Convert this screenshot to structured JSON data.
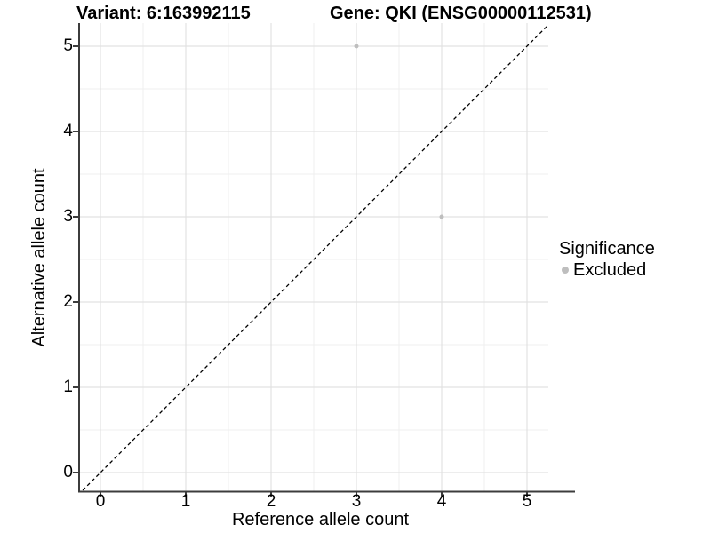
{
  "figure": {
    "title_left": "Variant: 6:163992115",
    "title_right": "Gene: QKI (ENSG00000112531)"
  },
  "chart_data": {
    "type": "scatter",
    "title_left": "Variant: 6:163992115",
    "title_right": "Gene: QKI (ENSG00000112531)",
    "xlabel": "Reference allele count",
    "ylabel": "Alternative allele count",
    "x_ticks": [
      0,
      1,
      2,
      3,
      4,
      5
    ],
    "y_ticks": [
      0,
      1,
      2,
      3,
      4,
      5
    ],
    "xlim": [
      -0.25,
      5.25
    ],
    "ylim": [
      -0.25,
      5.25
    ],
    "grid": "major-and-minor",
    "minor_grid_step": 0.5,
    "identity_line": {
      "description": "y = x reference line",
      "style": "dashed",
      "color": "#000000",
      "from": [
        -0.25,
        -0.25
      ],
      "to": [
        5.25,
        5.25
      ]
    },
    "series": [
      {
        "name": "Excluded",
        "color": "#bebebe",
        "points": [
          [
            3,
            5
          ],
          [
            4,
            3
          ]
        ]
      }
    ],
    "legend": {
      "title": "Significance",
      "position": "right",
      "entries": [
        {
          "label": "Excluded",
          "color": "#bebebe"
        }
      ]
    }
  },
  "colors": {
    "background": "#ffffff",
    "grid_major": "#e2e2e2",
    "grid_minor": "#efefef",
    "axis_line": "#3c3c3c",
    "point": "#bebebe",
    "text": "#000000"
  }
}
